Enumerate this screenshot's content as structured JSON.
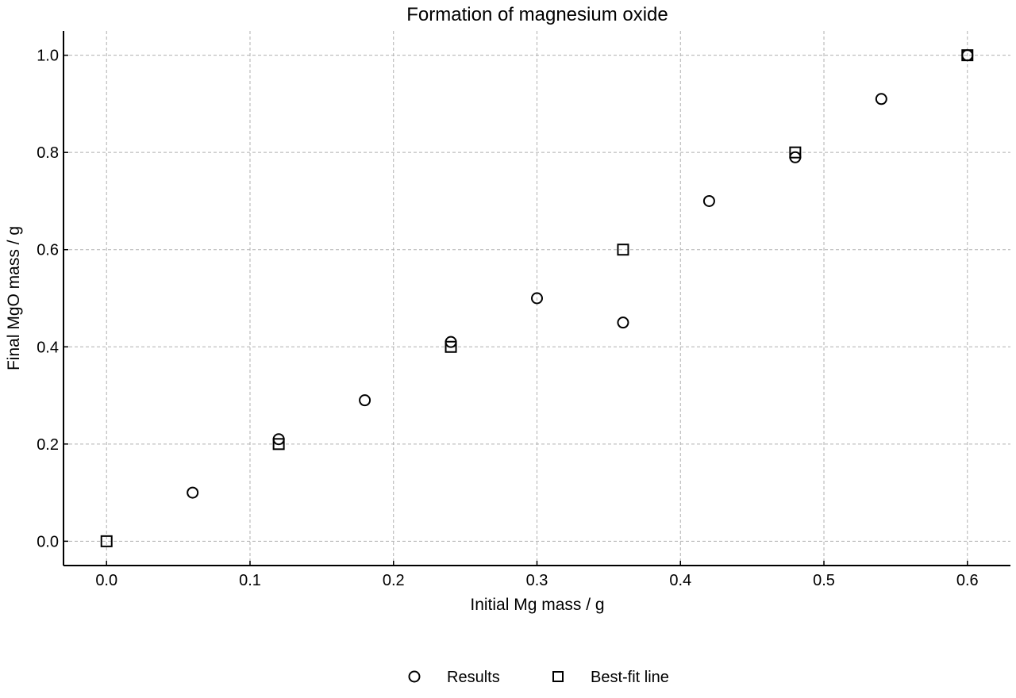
{
  "chart_data": {
    "type": "scatter",
    "title": "Formation of magnesium oxide",
    "xlabel": "Initial Mg mass / g",
    "ylabel": "Final MgO mass / g",
    "xlim": [
      -0.03,
      0.63
    ],
    "ylim": [
      -0.05,
      1.05
    ],
    "xticks": [
      0.0,
      0.1,
      0.2,
      0.3,
      0.4,
      0.5,
      0.6
    ],
    "xtick_labels": [
      "0.0",
      "0.1",
      "0.2",
      "0.3",
      "0.4",
      "0.5",
      "0.6"
    ],
    "yticks": [
      0.0,
      0.2,
      0.4,
      0.6,
      0.8,
      1.0
    ],
    "ytick_labels": [
      "0.0",
      "0.2",
      "0.4",
      "0.6",
      "0.8",
      "1.0"
    ],
    "grid": true,
    "legend_position": "bottom-center",
    "series": [
      {
        "name": "Results",
        "marker": "circle",
        "x": [
          0.06,
          0.12,
          0.18,
          0.24,
          0.3,
          0.36,
          0.42,
          0.48,
          0.54,
          0.6
        ],
        "y": [
          0.1,
          0.21,
          0.29,
          0.41,
          0.5,
          0.45,
          0.7,
          0.79,
          0.91,
          1.0
        ]
      },
      {
        "name": "Best-fit line",
        "marker": "square",
        "x": [
          0.0,
          0.12,
          0.24,
          0.36,
          0.48,
          0.6
        ],
        "y": [
          0.0,
          0.2,
          0.4,
          0.6,
          0.8,
          1.0
        ]
      }
    ],
    "colors": {
      "marker": "#000000",
      "grid": "#b0b0b0",
      "background": "#ffffff"
    }
  }
}
